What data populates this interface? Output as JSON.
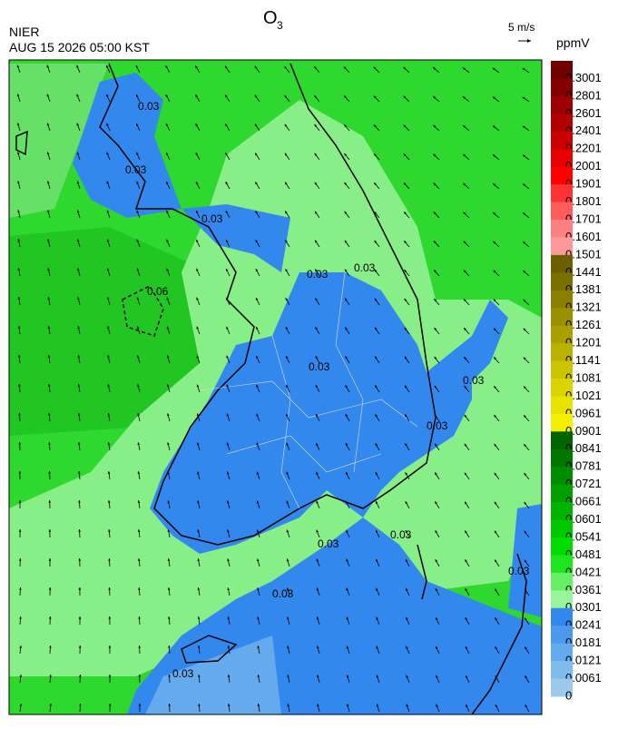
{
  "header": {
    "title": {
      "text": "O",
      "subscript": "3"
    },
    "agency": "NIER",
    "datetime": "AUG 15 2026 05:00 KST",
    "wind_scale": "5 m/s"
  },
  "colorbar": {
    "unit": "ppmV",
    "levels": [
      {
        "label": "0.3001",
        "color": "#700000"
      },
      {
        "label": "0.2801",
        "color": "#850000"
      },
      {
        "label": "0.2601",
        "color": "#9c0000"
      },
      {
        "label": "0.2401",
        "color": "#b30000"
      },
      {
        "label": "0.2201",
        "color": "#cc0000"
      },
      {
        "label": "0.2001",
        "color": "#e60000"
      },
      {
        "label": "0.1901",
        "color": "#ff0000"
      },
      {
        "label": "0.1801",
        "color": "#ff3333"
      },
      {
        "label": "0.1701",
        "color": "#ff5c5c"
      },
      {
        "label": "0.1601",
        "color": "#ff8080"
      },
      {
        "label": "0.1501",
        "color": "#ff9999"
      },
      {
        "label": "0.1441",
        "color": "#6b6000"
      },
      {
        "label": "0.1381",
        "color": "#7a7000"
      },
      {
        "label": "0.1321",
        "color": "#8a8000"
      },
      {
        "label": "0.1261",
        "color": "#9a9000"
      },
      {
        "label": "0.1201",
        "color": "#aaa000"
      },
      {
        "label": "0.1141",
        "color": "#bbb200"
      },
      {
        "label": "0.1081",
        "color": "#ccc400"
      },
      {
        "label": "0.1021",
        "color": "#dcd400"
      },
      {
        "label": "0.0961",
        "color": "#e8e200"
      },
      {
        "label": "0.0901",
        "color": "#f5f000"
      },
      {
        "label": "0.0841",
        "color": "#006400"
      },
      {
        "label": "0.0781",
        "color": "#007800"
      },
      {
        "label": "0.0721",
        "color": "#008c00"
      },
      {
        "label": "0.0661",
        "color": "#00a000"
      },
      {
        "label": "0.0601",
        "color": "#00b400"
      },
      {
        "label": "0.0541",
        "color": "#00c800"
      },
      {
        "label": "0.0481",
        "color": "#00dc00"
      },
      {
        "label": "0.0421",
        "color": "#1ee61e"
      },
      {
        "label": "0.0361",
        "color": "#66f066"
      },
      {
        "label": "0.0301",
        "color": "#99f599"
      },
      {
        "label": "0.0241",
        "color": "#3388ee"
      },
      {
        "label": "0.0181",
        "color": "#4d99ee"
      },
      {
        "label": "0.0121",
        "color": "#66aaee"
      },
      {
        "label": "0.0061",
        "color": "#80bbee"
      },
      {
        "label": "0",
        "color": "#9cc9ec"
      }
    ]
  },
  "map": {
    "contour_labels": [
      "0.03",
      "0.03",
      "0.03",
      "0.03",
      "0.03",
      "0.03",
      "0.03",
      "0.03",
      "0.03",
      "0.03",
      "0.03",
      "0.03",
      "0.03",
      "0.06"
    ]
  }
}
